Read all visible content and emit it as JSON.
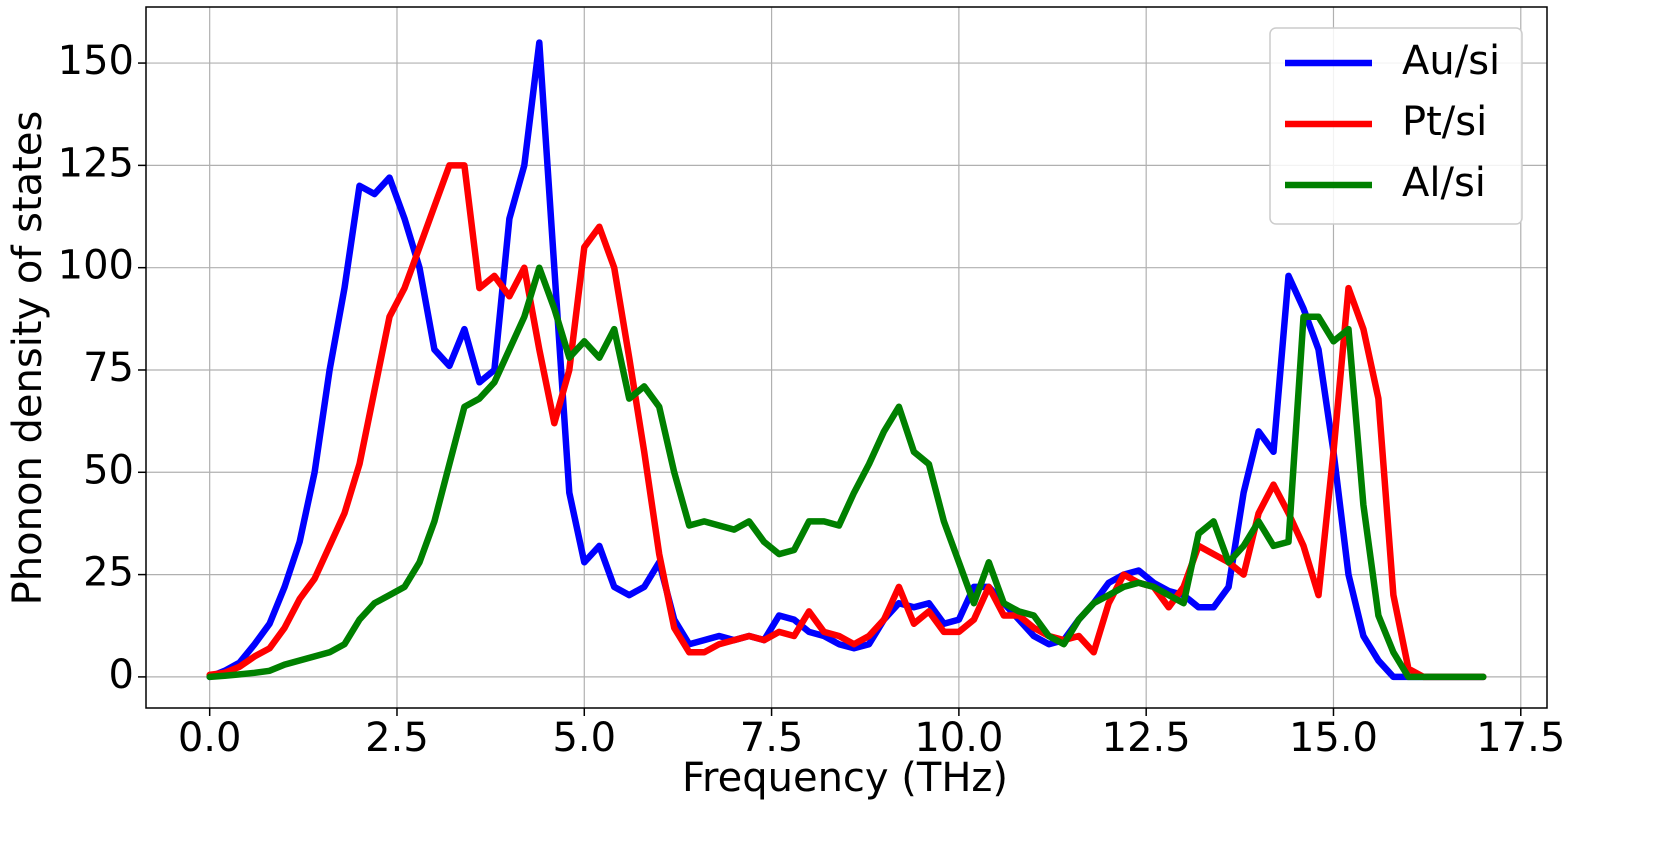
{
  "chart_data": {
    "type": "line",
    "xlabel": "Frequency (THz)",
    "ylabel": "Phonon density of states",
    "x": [
      0,
      0.2,
      0.4,
      0.6,
      0.8,
      1.0,
      1.2,
      1.4,
      1.6,
      1.8,
      2.0,
      2.2,
      2.4,
      2.6,
      2.8,
      3.0,
      3.2,
      3.4,
      3.6,
      3.8,
      4.0,
      4.2,
      4.4,
      4.6,
      4.8,
      5.0,
      5.2,
      5.4,
      5.6,
      5.8,
      6.0,
      6.2,
      6.4,
      6.6,
      6.8,
      7.0,
      7.2,
      7.4,
      7.6,
      7.8,
      8.0,
      8.2,
      8.4,
      8.6,
      8.8,
      9.0,
      9.2,
      9.4,
      9.6,
      9.8,
      10.0,
      10.2,
      10.4,
      10.6,
      10.8,
      11.0,
      11.2,
      11.4,
      11.6,
      11.8,
      12.0,
      12.2,
      12.4,
      12.6,
      12.8,
      13.0,
      13.2,
      13.4,
      13.6,
      13.8,
      14.0,
      14.2,
      14.4,
      14.6,
      14.8,
      15.0,
      15.2,
      15.4,
      15.6,
      15.8,
      16.0,
      16.2,
      16.4,
      16.6,
      16.8,
      17.0
    ],
    "series": [
      {
        "name": "Au/si",
        "color": "#0000ff",
        "values": [
          0,
          1.5,
          3.5,
          8,
          13,
          22,
          33,
          50,
          75,
          95,
          120,
          118,
          122,
          112,
          100,
          80,
          76,
          85,
          72,
          75,
          112,
          125,
          155,
          100,
          45,
          28,
          32,
          22,
          20,
          22,
          28,
          14,
          8,
          9,
          10,
          9,
          10,
          9,
          15,
          14,
          11,
          10,
          8,
          7,
          8,
          14,
          18,
          17,
          18,
          13,
          14,
          22,
          22,
          18,
          14,
          10,
          8,
          9,
          14,
          18,
          23,
          25,
          26,
          23,
          21,
          20,
          17,
          17,
          22,
          45,
          60,
          55,
          98,
          90,
          80,
          55,
          25,
          10,
          4,
          0,
          0,
          0,
          0,
          0,
          0,
          0
        ]
      },
      {
        "name": "Pt/si",
        "color": "#ff0000",
        "values": [
          0.5,
          1,
          2.5,
          5,
          7,
          12,
          19,
          24,
          32,
          40,
          52,
          70,
          88,
          95,
          105,
          115,
          125,
          125,
          95,
          98,
          93,
          100,
          80,
          62,
          75,
          105,
          110,
          100,
          78,
          55,
          30,
          12,
          6,
          6,
          8,
          9,
          10,
          9,
          11,
          10,
          16,
          11,
          10,
          8,
          10,
          14,
          22,
          13,
          16,
          11,
          11,
          14,
          22,
          15,
          15,
          12,
          10,
          9,
          10,
          6,
          18,
          25,
          23,
          22,
          17,
          22,
          32,
          30,
          28,
          25,
          40,
          47,
          40,
          32,
          20,
          55,
          95,
          85,
          68,
          20,
          2,
          0,
          0,
          0,
          0,
          0
        ]
      },
      {
        "name": "Al/si",
        "color": "#008000",
        "values": [
          0,
          0.3,
          0.6,
          1,
          1.5,
          3,
          4,
          5,
          6,
          8,
          14,
          18,
          20,
          22,
          28,
          38,
          52,
          66,
          68,
          72,
          80,
          88,
          100,
          90,
          78,
          82,
          78,
          85,
          68,
          71,
          66,
          50,
          37,
          38,
          37,
          36,
          38,
          33,
          30,
          31,
          38,
          38,
          37,
          45,
          52,
          60,
          66,
          55,
          52,
          38,
          28,
          18,
          28,
          18,
          16,
          15,
          10,
          8,
          14,
          18,
          20,
          22,
          23,
          22,
          20,
          18,
          35,
          38,
          28,
          32,
          38,
          32,
          33,
          88,
          88,
          82,
          85,
          42,
          15,
          6,
          0,
          0,
          0,
          0,
          0,
          0
        ]
      }
    ],
    "xlim": [
      -0.85,
      17.85
    ],
    "ylim": [
      -7.6,
      163.7
    ],
    "xticks": [
      {
        "value": 0,
        "label": "0.0"
      },
      2.5,
      {
        "value": 5,
        "label": "5.0"
      },
      7.5,
      {
        "value": 10,
        "label": "10.0"
      },
      12.5,
      {
        "value": 15,
        "label": "15.0"
      },
      17.5
    ],
    "yticks": [
      0,
      25,
      50,
      75,
      100,
      125,
      150
    ],
    "grid": true,
    "legend": "upper right"
  }
}
